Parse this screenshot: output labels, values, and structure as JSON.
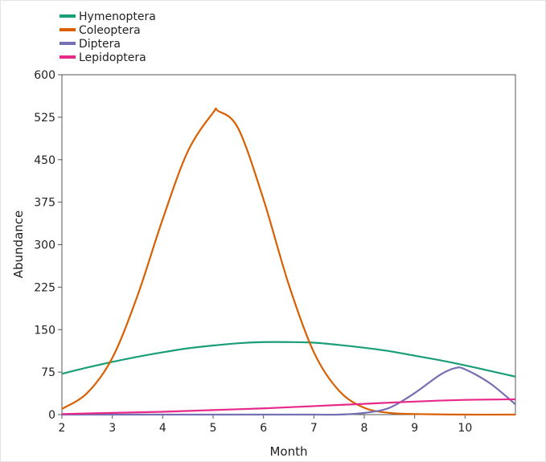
{
  "chart_data": {
    "type": "line",
    "title": "",
    "xlabel": "Month",
    "ylabel": "Abundance",
    "xlim": [
      2,
      11
    ],
    "ylim": [
      0,
      600
    ],
    "x_ticks": [
      2,
      3,
      4,
      5,
      6,
      7,
      8,
      9,
      10
    ],
    "y_ticks": [
      0,
      75,
      150,
      225,
      300,
      375,
      450,
      525,
      600
    ],
    "grid": false,
    "legend_position": "top-left",
    "series": [
      {
        "name": "Hymenoptera",
        "color": "#1a9e77",
        "x": [
          2,
          2.5,
          3,
          3.5,
          4,
          4.5,
          5,
          5.5,
          6,
          6.5,
          7,
          7.5,
          8,
          8.5,
          9,
          9.5,
          10,
          10.5,
          11
        ],
        "y": [
          72,
          83,
          93,
          102,
          110,
          117,
          122,
          126,
          128,
          128,
          127,
          123,
          118,
          112,
          104,
          96,
          87,
          77,
          67
        ]
      },
      {
        "name": "Coleoptera",
        "color": "#d95f02",
        "x": [
          2,
          2.5,
          3,
          3.5,
          4,
          4.5,
          5,
          5.1,
          5.5,
          6,
          6.5,
          7,
          7.5,
          8,
          8.5,
          9,
          10,
          11
        ],
        "y": [
          10,
          38,
          100,
          210,
          345,
          465,
          533,
          536,
          505,
          380,
          230,
          110,
          42,
          12,
          3,
          1,
          0,
          0
        ]
      },
      {
        "name": "Diptera",
        "color": "#7570b3",
        "x": [
          2,
          3,
          4,
          5,
          6,
          7,
          7.5,
          8,
          8.5,
          9,
          9.5,
          9.8,
          10,
          10.5,
          11
        ],
        "y": [
          0,
          0,
          0,
          0,
          0,
          0,
          0,
          3,
          12,
          38,
          70,
          82,
          80,
          55,
          18
        ]
      },
      {
        "name": "Lepidoptera",
        "color": "#e7298a",
        "x": [
          2,
          3,
          4,
          5,
          6,
          7,
          8,
          9,
          10,
          11
        ],
        "y": [
          1,
          3,
          5,
          8,
          11,
          15,
          19,
          23,
          26,
          27
        ]
      }
    ]
  }
}
